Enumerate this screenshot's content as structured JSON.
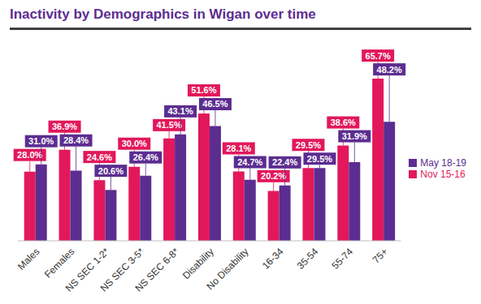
{
  "chart_data": {
    "type": "bar",
    "title": "Inactivity by Demographics in Wigan over time",
    "categories": [
      "Males",
      "Females",
      "NS SEC 1-2*",
      "NS SEC 3-5*",
      "NS SEC 6-8*",
      "Disability",
      "No Disability",
      "16-34",
      "35-54",
      "55-74",
      "75+"
    ],
    "series": [
      {
        "name": "Nov 15-16",
        "color": "#e2185b",
        "values": [
          28.0,
          36.9,
          24.6,
          30.0,
          41.5,
          51.6,
          28.1,
          20.2,
          29.5,
          38.6,
          65.7
        ],
        "value_labels": [
          "28.0%",
          "36.9%",
          "24.6%",
          "30.0%",
          "41.5%",
          "51.6%",
          "28.1%",
          "20.2%",
          "29.5%",
          "38.6%",
          "65.7%"
        ]
      },
      {
        "name": "May 18-19",
        "color": "#5c2d91",
        "values": [
          31.0,
          28.4,
          20.6,
          26.4,
          43.1,
          46.5,
          24.7,
          22.4,
          29.5,
          31.9,
          48.2
        ],
        "value_labels": [
          "31.0%",
          "28.4%",
          "20.6%",
          "26.4%",
          "43.1%",
          "46.5%",
          "24.7%",
          "22.4%",
          "29.5%",
          "31.9%",
          "48.2%"
        ]
      }
    ],
    "ylim": [
      0,
      70
    ],
    "data_labels": true,
    "legend": "right",
    "tick_labels": "x",
    "grid": false
  }
}
